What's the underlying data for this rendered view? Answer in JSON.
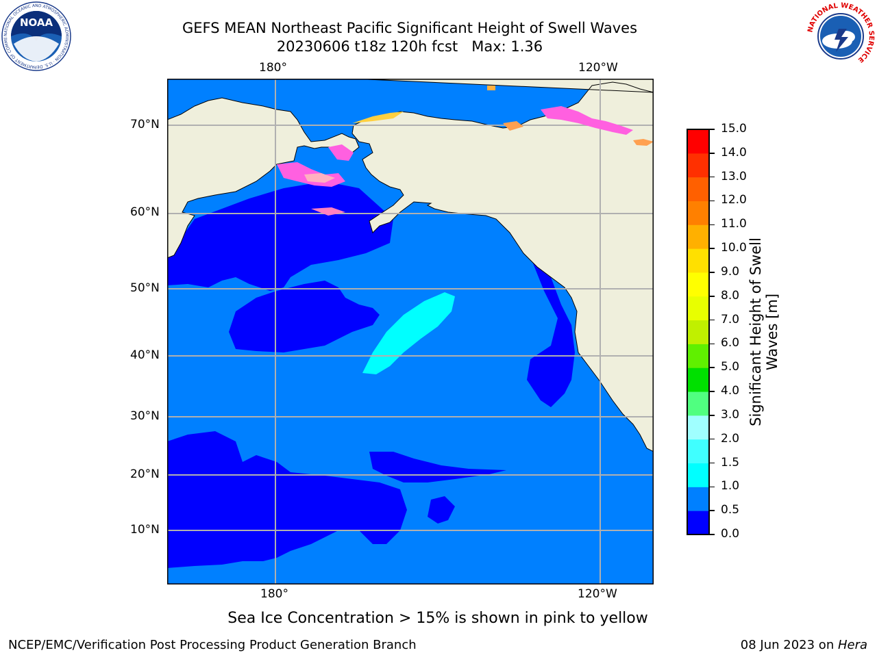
{
  "title_line1": "GEFS MEAN Northeast Pacific Significant Height of Swell Waves",
  "title_line2": "20230606 t18z 120h fcst   Max: 1.36",
  "lon_labels_top": [
    "180°",
    "120°W"
  ],
  "lon_labels_bottom": [
    "180°",
    "120°W"
  ],
  "lat_labels": [
    "70°N",
    "60°N",
    "50°N",
    "40°N",
    "30°N",
    "20°N",
    "10°N"
  ],
  "colorbar": {
    "title_line1": "Significant Height of Swell",
    "title_line2": "Waves [m]",
    "ticks": [
      "0.0",
      "0.5",
      "1.0",
      "1.5",
      "2.0",
      "3.0",
      "4.0",
      "5.0",
      "6.0",
      "7.0",
      "8.0",
      "9.0",
      "10.0",
      "11.0",
      "12.0",
      "13.0",
      "14.0",
      "15.0"
    ],
    "colors": [
      "#0000ff",
      "#0080ff",
      "#00ffff",
      "#40ffff",
      "#a0ffff",
      "#50ff80",
      "#00e000",
      "#60f000",
      "#c0f000",
      "#e8ff00",
      "#ffff00",
      "#ffe000",
      "#ffb000",
      "#ff8000",
      "#ff6000",
      "#ff3000",
      "#ff0000"
    ]
  },
  "caption": "Sea Ice Concentration > 15% is shown in pink to yellow",
  "footer_left": "NCEP/EMC/Verification Post Processing Product Generation Branch",
  "footer_date": "08 Jun 2023 on ",
  "footer_host": "Hera",
  "logos": {
    "noaa_text": "NOAA",
    "noaa_ring_text": "NATIONAL OCEANIC AND ATMOSPHERIC ADMINISTRATION · U.S. DEPARTMENT OF COMMERCE",
    "nws_ring_text": "NATIONAL WEATHER SERVICE"
  },
  "colors": {
    "land": "#efefdc",
    "ocean_light": "#0080ff",
    "ocean_dark": "#0000ff",
    "cyan": "#00ffff",
    "ice_pink": "#ff60e0"
  }
}
